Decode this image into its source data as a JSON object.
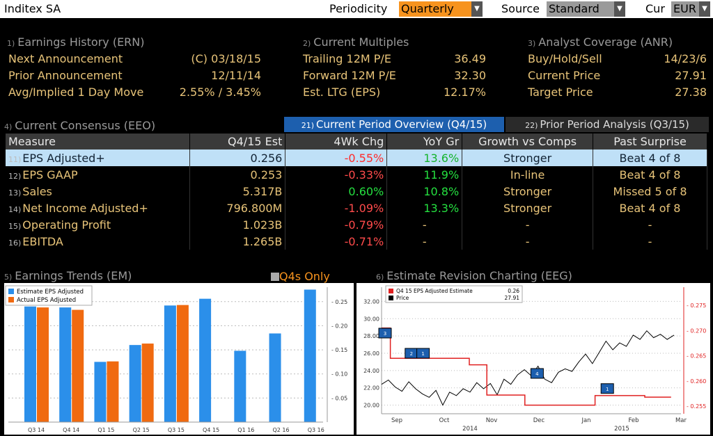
{
  "header": {
    "title": "Inditex SA",
    "periodicity_label": "Periodicity",
    "periodicity_value": "Quarterly",
    "source_label": "Source",
    "source_value": "Standard",
    "cur_label": "Cur",
    "cur_value": "EUR"
  },
  "earnings_history": {
    "num": "1)",
    "title": "Earnings History (ERN)",
    "rows": [
      {
        "label": "Next Announcement",
        "value": "(C)  03/18/15"
      },
      {
        "label": "Prior Announcement",
        "value": "12/11/14"
      },
      {
        "label": "Avg/Implied 1 Day Move",
        "value": "2.55% / 3.45%"
      }
    ]
  },
  "current_multiples": {
    "num": "2)",
    "title": "Current Multiples",
    "rows": [
      {
        "label": "Trailing 12M P/E",
        "value": "36.49"
      },
      {
        "label": "Forward 12M P/E",
        "value": "32.30"
      },
      {
        "label": "Est. LTG (EPS)",
        "value": "12.17%"
      }
    ]
  },
  "analyst_coverage": {
    "num": "3)",
    "title": "Analyst Coverage (ANR)",
    "rows": [
      {
        "label": "Buy/Hold/Sell",
        "value": "14/23/6"
      },
      {
        "label": "Current Price",
        "value": "27.91"
      },
      {
        "label": "Target Price",
        "value": "27.38"
      }
    ]
  },
  "consensus": {
    "num": "4)",
    "title": "Current Consensus (EEO)",
    "tabs": [
      {
        "num": "21)",
        "label": "Current Period Overview (Q4/15)"
      },
      {
        "num": "22)",
        "label": "Prior Period Analysis (Q3/15)"
      }
    ],
    "columns": [
      "Measure",
      "Q4/15 Est",
      "4Wk Chg",
      "YoY Gr",
      "Growth vs Comps",
      "Past Surprise"
    ],
    "rows": [
      {
        "n": "11)",
        "measure": "EPS Adjusted+",
        "est": "0.256",
        "chg": "-0.55%",
        "yoy": "13.6%",
        "comps": "Stronger",
        "surprise": "Beat 4 of 8"
      },
      {
        "n": "12)",
        "measure": "EPS GAAP",
        "est": "0.253",
        "chg": "-0.33%",
        "yoy": "11.9%",
        "comps": "In-line",
        "surprise": "Beat 4 of 8"
      },
      {
        "n": "13)",
        "measure": "Sales",
        "est": "5.317B",
        "chg": "0.60%",
        "yoy": "10.8%",
        "comps": "Stronger",
        "surprise": "Missed 5 of 8"
      },
      {
        "n": "14)",
        "measure": "Net Income Adjusted+",
        "est": "796.800M",
        "chg": "-1.09%",
        "yoy": "13.3%",
        "comps": "Stronger",
        "surprise": "Beat 4 of 8"
      },
      {
        "n": "15)",
        "measure": "Operating Profit",
        "est": "1.023B",
        "chg": "-0.79%",
        "yoy": "-",
        "comps": "-",
        "surprise": "-"
      },
      {
        "n": "16)",
        "measure": "EBITDA",
        "est": "1.265B",
        "chg": "-0.71%",
        "yoy": "-",
        "comps": "-",
        "surprise": "-"
      }
    ]
  },
  "earnings_trends": {
    "num": "5)",
    "title": "Earnings Trends (EM)",
    "toggle_label": "Q4s Only"
  },
  "estimate_revision": {
    "num": "6)",
    "title": "Estimate Revision Charting (EEG)"
  },
  "colors": {
    "estimate": "#2b8fea",
    "actual": "#f06a10",
    "estimate_line": "#e02020",
    "price_line": "#000000",
    "accent": "#e8c479"
  },
  "chart_data": [
    {
      "type": "bar",
      "categories": [
        "Q3 14",
        "Q4 14",
        "Q1 15",
        "Q2 15",
        "Q3 15",
        "Q4 15",
        "Q1 16",
        "Q2 16",
        "Q3 16"
      ],
      "series": [
        {
          "name": "Estimate EPS Adjusted",
          "values": [
            0.24,
            0.238,
            0.125,
            0.16,
            0.242,
            0.256,
            0.148,
            0.184,
            0.275
          ]
        },
        {
          "name": "Actual EPS Adjusted",
          "values": [
            0.238,
            0.233,
            0.126,
            0.163,
            0.243,
            null,
            null,
            null,
            null
          ]
        }
      ],
      "ylim": [
        0,
        0.28
      ],
      "yticks": [
        "0.05",
        "0.10",
        "0.15",
        "0.20",
        "0.25"
      ],
      "legend": "top-left",
      "grid": true
    },
    {
      "type": "line",
      "legend_items": [
        {
          "label": "Q4 15 EPS Adjusted Estimate",
          "value": "0.26"
        },
        {
          "label": "Price",
          "value": "27.91"
        }
      ],
      "left_ticks": [
        "20.00",
        "22.00",
        "24.00",
        "26.00",
        "28.00",
        "30.00",
        "32.00"
      ],
      "right_ticks": [
        "0.255",
        "0.260",
        "0.265",
        "0.270",
        "0.275"
      ],
      "x_months": [
        "Sep",
        "Oct",
        "Nov",
        "Dec",
        "Jan",
        "Feb",
        "Mar"
      ],
      "x_years": [
        "2014",
        "2015"
      ],
      "estimate_steps": [
        {
          "x": 0.0,
          "y": 0.2705
        },
        {
          "x": 0.03,
          "y": 0.2645
        },
        {
          "x": 0.3,
          "y": 0.2632
        },
        {
          "x": 0.36,
          "y": 0.2572
        },
        {
          "x": 0.49,
          "y": 0.2552
        },
        {
          "x": 0.73,
          "y": 0.2571
        },
        {
          "x": 0.9,
          "y": 0.2568
        },
        {
          "x": 0.99,
          "y": 0.2568
        }
      ],
      "price_series": [
        22.4,
        22.9,
        22.1,
        21.6,
        22.7,
        21.9,
        21.3,
        20.9,
        21.7,
        20.0,
        21.5,
        21.1,
        21.9,
        21.5,
        22.6,
        21.9,
        22.5,
        21.2,
        23.0,
        22.4,
        23.5,
        24.1,
        23.4,
        24.5,
        23.0,
        22.6,
        23.8,
        24.2,
        23.9,
        25.0,
        25.9,
        24.8,
        26.1,
        27.4,
        26.4,
        27.2,
        26.8,
        28.1,
        27.6,
        28.6,
        27.8,
        28.2,
        27.6,
        28.1
      ],
      "markers": [
        "3",
        "2",
        "1",
        "4",
        "1"
      ]
    }
  ]
}
